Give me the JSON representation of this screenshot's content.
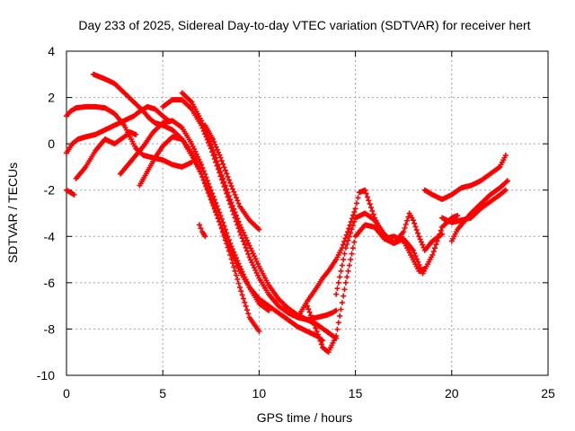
{
  "chart_data": {
    "type": "scatter",
    "title": "Day 233 of 2025, Sidereal Day-to-day VTEC variation (SDTVAR) for receiver hert",
    "xlabel": "GPS time / hours",
    "ylabel": "SDTVAR / TECUs",
    "xlim": [
      0,
      25
    ],
    "ylim": [
      -10,
      4
    ],
    "x_ticks": [
      0,
      5,
      10,
      15,
      20,
      25
    ],
    "y_ticks": [
      -10,
      -8,
      -6,
      -4,
      -2,
      0,
      2,
      4
    ],
    "x_tick_labels": [
      "0",
      "5",
      "10",
      "15",
      "20",
      "25"
    ],
    "y_tick_labels": [
      "-10",
      "-8",
      "-6",
      "-4",
      "-2",
      "0",
      "2",
      "4"
    ],
    "grid": true,
    "marker": "plus",
    "series_color": "#ff0000",
    "series": [
      {
        "x": [
          0.0,
          0.2,
          0.5,
          1.0,
          1.5,
          2.0,
          2.5,
          3.0,
          3.3,
          3.6,
          4.0,
          4.5,
          5.0,
          5.5,
          6.0,
          6.5
        ],
        "y": [
          1.2,
          1.4,
          1.55,
          1.6,
          1.6,
          1.55,
          1.3,
          0.8,
          0.3,
          -0.2,
          -0.5,
          -0.6,
          -0.7,
          -0.9,
          -1.0,
          -0.8
        ]
      },
      {
        "x": [
          0.0,
          0.3,
          0.6,
          1.0,
          1.5,
          2.0,
          2.5,
          3.0,
          3.5,
          3.8,
          4.2,
          4.6,
          5.0,
          5.3
        ],
        "y": [
          -0.4,
          0.0,
          0.2,
          0.3,
          0.4,
          0.6,
          0.8,
          1.0,
          1.2,
          1.4,
          1.6,
          1.5,
          1.2,
          1.0
        ]
      },
      {
        "x": [
          0.0,
          0.2,
          0.4
        ],
        "y": [
          -2.0,
          -2.1,
          -2.2
        ]
      },
      {
        "x": [
          0.5,
          1.0,
          1.5,
          2.0,
          2.5,
          3.0,
          3.3,
          3.6
        ],
        "y": [
          -1.5,
          -1.0,
          -0.3,
          0.2,
          0.0,
          0.3,
          0.5,
          0.4
        ]
      },
      {
        "x": [
          1.4,
          2.0,
          2.5,
          3.0,
          3.5,
          4.0,
          4.3,
          4.6,
          5.0,
          5.5,
          6.0,
          6.5,
          7.0,
          7.5,
          8.0,
          8.5,
          9.0,
          9.5,
          10.0
        ],
        "y": [
          3.0,
          2.8,
          2.6,
          2.2,
          1.8,
          1.4,
          1.1,
          0.9,
          0.8,
          0.6,
          0.2,
          -0.5,
          -1.3,
          -2.3,
          -3.5,
          -4.8,
          -6.2,
          -7.5,
          -8.1
        ]
      },
      {
        "x": [
          2.8,
          3.2,
          3.6,
          4.0,
          4.5,
          5.0,
          5.5,
          6.0,
          6.5,
          7.0,
          7.5,
          8.0,
          8.5,
          9.0,
          9.5,
          10.0,
          10.5
        ],
        "y": [
          -1.3,
          -0.9,
          -0.5,
          -0.1,
          0.5,
          0.9,
          1.0,
          0.7,
          0.0,
          -0.9,
          -2.0,
          -3.1,
          -4.3,
          -5.3,
          -6.2,
          -6.9,
          -7.2
        ]
      },
      {
        "x": [
          3.8,
          4.2,
          4.6,
          5.0,
          5.5,
          6.0,
          6.5,
          7.0,
          7.5,
          8.0,
          8.5,
          9.0,
          9.5,
          10.0,
          10.5,
          11.0,
          11.5,
          12.0,
          12.5,
          13.0,
          13.3
        ],
        "y": [
          -1.8,
          -1.2,
          -0.6,
          -0.1,
          0.3,
          0.2,
          -0.4,
          -1.3,
          -2.4,
          -3.5,
          -4.6,
          -5.5,
          -6.2,
          -6.7,
          -7.0,
          -7.3,
          -7.6,
          -7.9,
          -8.1,
          -8.3,
          -8.5
        ]
      },
      {
        "x": [
          5.0,
          5.5,
          6.0,
          6.5,
          7.0,
          7.5,
          8.0,
          8.5,
          9.0,
          9.5,
          10.0,
          10.5,
          11.0,
          11.5,
          12.0,
          12.5,
          13.0,
          13.5,
          13.8,
          14.0
        ],
        "y": [
          1.6,
          1.9,
          1.9,
          1.5,
          0.8,
          -0.2,
          -1.4,
          -2.6,
          -3.8,
          -4.9,
          -5.8,
          -6.5,
          -7.0,
          -7.3,
          -7.5,
          -7.6,
          -7.5,
          -7.4,
          -7.3,
          -7.2
        ]
      },
      {
        "x": [
          6.0,
          6.5,
          7.0,
          7.5,
          8.0,
          8.5,
          9.0,
          9.5,
          10.0,
          10.5,
          11.0,
          11.5,
          12.0,
          12.5,
          13.0,
          13.5,
          14.0
        ],
        "y": [
          2.2,
          1.8,
          1.0,
          0.0,
          -1.2,
          -2.4,
          -3.5,
          -4.4,
          -5.3,
          -6.1,
          -6.7,
          -7.1,
          -7.4,
          -7.6,
          -7.8,
          -8.1,
          -8.4
        ]
      },
      {
        "x": [
          6.9,
          7.05,
          7.2
        ],
        "y": [
          -3.5,
          -3.8,
          -4.0
        ]
      },
      {
        "x": [
          7.2,
          7.6,
          8.0,
          8.5,
          9.0,
          9.5,
          10.0
        ],
        "y": [
          0.8,
          0.2,
          -0.6,
          -1.7,
          -2.7,
          -3.3,
          -3.7
        ]
      },
      {
        "x": [
          12.0,
          12.5,
          13.0,
          13.3,
          13.6,
          14.0,
          14.3,
          14.6,
          15.0,
          15.2,
          15.5,
          16.0,
          16.5,
          17.0,
          17.5,
          18.0,
          18.3,
          18.6
        ],
        "y": [
          -7.5,
          -6.8,
          -6.2,
          -5.8,
          -5.5,
          -5.0,
          -4.5,
          -3.8,
          -2.8,
          -2.1,
          -2.0,
          -3.2,
          -4.1,
          -4.0,
          -4.2,
          -5.0,
          -5.5,
          -5.4
        ]
      },
      {
        "x": [
          12.5,
          13.0,
          13.3,
          13.6,
          14.0,
          14.5,
          15.0,
          15.5,
          16.0,
          16.5,
          17.0,
          17.5,
          18.0,
          18.5,
          19.0,
          19.5,
          20.0,
          20.3
        ],
        "y": [
          -7.0,
          -8.1,
          -8.8,
          -9.0,
          -8.3,
          -6.0,
          -4.0,
          -3.5,
          -3.6,
          -4.1,
          -4.3,
          -4.1,
          -4.6,
          -5.6,
          -4.8,
          -3.6,
          -3.2,
          -3.1
        ]
      },
      {
        "x": [
          14.0,
          14.5,
          15.0,
          15.5,
          16.0,
          16.5,
          17.0,
          17.5,
          17.8,
          18.0,
          18.3,
          18.6,
          19.0,
          19.5
        ],
        "y": [
          -6.5,
          -4.5,
          -3.2,
          -3.0,
          -3.3,
          -3.9,
          -4.3,
          -3.8,
          -3.0,
          -3.3,
          -4.0,
          -4.6,
          -4.2,
          -3.9
        ]
      },
      {
        "x": [
          18.6,
          19.0,
          19.5,
          20.0,
          20.5,
          21.0,
          21.5,
          22.0,
          22.5,
          22.8
        ],
        "y": [
          -2.0,
          -2.2,
          -2.4,
          -2.2,
          -1.9,
          -1.8,
          -1.6,
          -1.3,
          -1.0,
          -0.5
        ]
      },
      {
        "x": [
          19.5,
          20.0,
          20.5,
          21.0,
          21.5,
          22.0,
          22.5,
          22.8
        ],
        "y": [
          -3.2,
          -3.4,
          -3.3,
          -3.2,
          -2.8,
          -2.5,
          -2.2,
          -2.0
        ]
      },
      {
        "x": [
          20.0,
          20.3,
          20.6,
          21.0,
          21.5,
          22.0,
          22.5,
          22.9
        ],
        "y": [
          -4.2,
          -3.7,
          -3.4,
          -3.0,
          -2.6,
          -2.2,
          -1.9,
          -1.6
        ]
      }
    ]
  }
}
